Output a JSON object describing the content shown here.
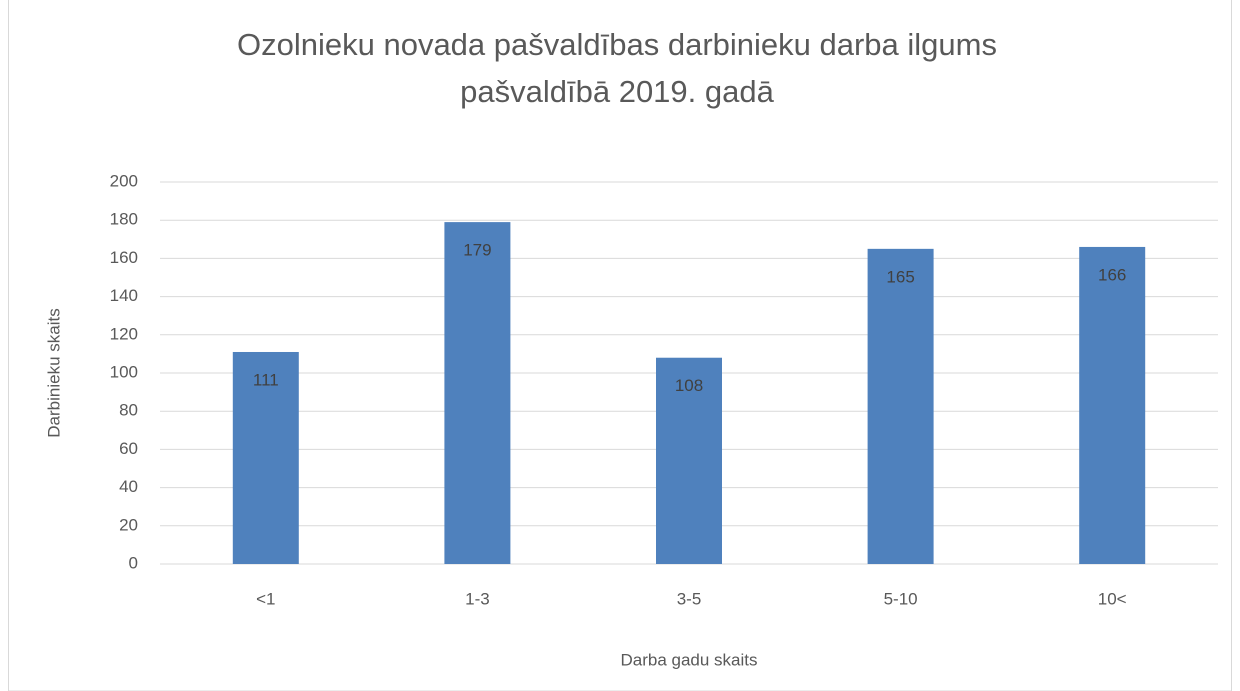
{
  "chart_data": {
    "type": "bar",
    "title": [
      "Ozolnieku novada pašvaldības darbinieku darba ilgums",
      "pašvaldībā 2019. gadā"
    ],
    "x_label": "Darba gadu skaits",
    "y_label": "Darbinieku skaits",
    "categories": [
      "<1",
      "1-3",
      "3-5",
      "5-10",
      "10<"
    ],
    "values": [
      111,
      179,
      108,
      165,
      166
    ],
    "color": "#4f81bd",
    "ylim": [
      0,
      200
    ],
    "yticks": [
      0,
      20,
      40,
      60,
      80,
      100,
      120,
      140,
      160,
      180,
      200
    ],
    "grid": true,
    "data_labels": true
  }
}
